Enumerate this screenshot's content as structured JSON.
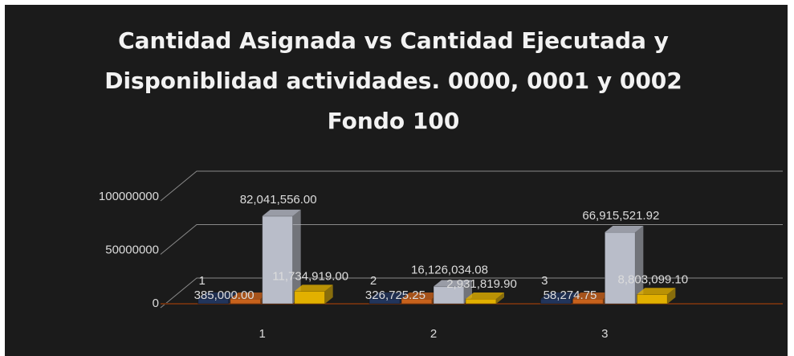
{
  "chart_data": {
    "type": "bar3d",
    "title": "Cantidad Asignada vs Cantidad Ejecutada y Disponiblidad actividades. 0000, 0001 y 0002 Fondo 100",
    "categories": [
      "1",
      "2",
      "3"
    ],
    "series": [
      {
        "color": "#22355c",
        "values": [
          1,
          2,
          3
        ]
      },
      {
        "color": "#c8621c",
        "values": [
          385000,
          326725.25,
          58274.75
        ],
        "value_labels": [
          "385,000.00",
          "326,725.25",
          "58,274.75"
        ]
      },
      {
        "color": "#b9bdc9",
        "values": [
          82041556,
          16126034.08,
          66915521.92
        ],
        "value_labels": [
          "82,041,556.00",
          "16,126,034.08",
          "66,915,521.92"
        ]
      },
      {
        "color": "#e2b000",
        "values": [
          11734919,
          2931819.9,
          8803099.1
        ],
        "value_labels": [
          "11,734,919.00",
          "2,931,819.90",
          "8,803,099.10"
        ]
      }
    ],
    "ylim": [
      0,
      100000000
    ],
    "yticks": [
      0,
      50000000,
      100000000
    ],
    "grid": true
  }
}
